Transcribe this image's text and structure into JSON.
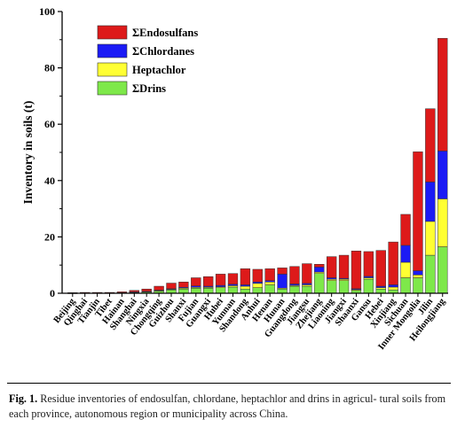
{
  "chart_data": {
    "type": "bar",
    "stacked": true,
    "ylabel": "Inventory in soils (t)",
    "ylim": [
      0,
      100
    ],
    "yticks": [
      0,
      20,
      40,
      60,
      80,
      100
    ],
    "legend_position": "top-left",
    "categories": [
      "Beijing",
      "Qinghai",
      "Tianjin",
      "Tibet",
      "Hainan",
      "Shanghai",
      "Ningxia",
      "Chongqing",
      "Guizhou",
      "Shanxi",
      "Fujian",
      "Guangxi",
      "Hubei",
      "Yunnan",
      "Shandong",
      "Anhui",
      "Henan",
      "Hunan",
      "Guangdong",
      "Jiangsu",
      "Zhejiang",
      "Liaoning",
      "Jiangxi",
      "Shaanxi",
      "Gansu",
      "Hebei",
      "Xinjiang",
      "Sichuan",
      "Inner Mongolia",
      "Jilin",
      "Heilongjiang"
    ],
    "series": [
      {
        "name": "ΣDrins",
        "color": "#7ee84a",
        "values": [
          0.05,
          0.1,
          0.1,
          0.1,
          0.2,
          0.3,
          0.5,
          0.8,
          1.2,
          1.5,
          1.8,
          1.8,
          2.0,
          2.2,
          1.5,
          2.0,
          3.0,
          1.5,
          2.5,
          2.5,
          7.0,
          4.5,
          4.5,
          1.0,
          5.0,
          1.5,
          1.2,
          5.5,
          5.5,
          13.5,
          16.5
        ]
      },
      {
        "name": "Heptachlor",
        "color": "#ffff33",
        "values": [
          0.0,
          0.0,
          0.0,
          0.0,
          0.0,
          0.1,
          0.1,
          0.2,
          0.2,
          0.3,
          0.3,
          0.3,
          0.3,
          0.5,
          1.0,
          1.5,
          1.0,
          0.3,
          0.3,
          0.5,
          0.5,
          0.5,
          0.5,
          0.3,
          0.5,
          0.5,
          1.0,
          5.5,
          1.0,
          12.0,
          17.0
        ]
      },
      {
        "name": "ΣChlordanes",
        "color": "#1b1bf5",
        "values": [
          0.0,
          0.0,
          0.0,
          0.0,
          0.0,
          0.1,
          0.1,
          0.1,
          0.2,
          0.3,
          0.5,
          0.4,
          0.5,
          0.5,
          0.5,
          0.5,
          0.5,
          5.0,
          0.5,
          0.5,
          1.8,
          0.5,
          0.3,
          0.3,
          0.5,
          0.5,
          0.8,
          6.0,
          1.5,
          14.0,
          17.0
        ]
      },
      {
        "name": "ΣEndosulfans",
        "color": "#dd1a1a",
        "values": [
          0.15,
          0.2,
          0.2,
          0.2,
          0.3,
          0.5,
          0.8,
          1.4,
          2.0,
          1.9,
          2.9,
          3.4,
          4.0,
          3.8,
          5.7,
          4.5,
          4.2,
          2.2,
          6.2,
          7.0,
          1.0,
          7.5,
          8.2,
          13.4,
          8.8,
          12.7,
          15.2,
          11.0,
          42.2,
          26.0,
          40.0
        ]
      }
    ]
  },
  "caption": {
    "label": "Fig. 1.",
    "text": "Residue inventories of endosulfan, chlordane, heptachlor and drins in agricul- tural soils from each province, autonomous region or municipality across China."
  }
}
